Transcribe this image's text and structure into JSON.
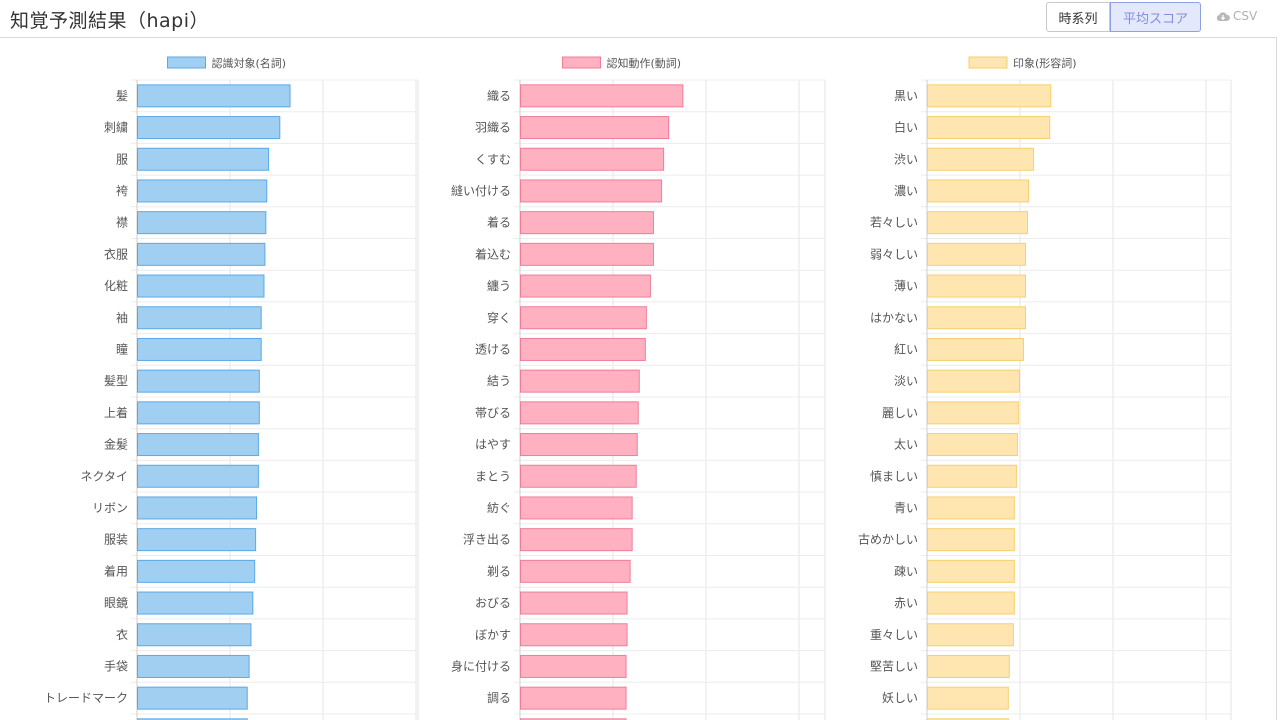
{
  "header": {
    "title": "知覚予測結果（hapi）",
    "buttons": [
      {
        "label": "時系列",
        "active": false
      },
      {
        "label": "平均スコア",
        "active": true
      }
    ],
    "csv_label": "CSV"
  },
  "chart_data": [
    {
      "type": "bar",
      "orientation": "horizontal",
      "series_name": "認識対象(名詞)",
      "fill": "#a0cff1",
      "stroke": "#5aa9e6",
      "categories": [
        "髪",
        "刺繍",
        "服",
        "袴",
        "襟",
        "衣服",
        "化粧",
        "袖",
        "瞳",
        "髪型",
        "上着",
        "金髪",
        "ネクタイ",
        "リボン",
        "服装",
        "着用",
        "眼鏡",
        "衣",
        "手袋",
        "トレードマーク"
      ],
      "values": [
        0.164,
        0.153,
        0.141,
        0.139,
        0.138,
        0.137,
        0.136,
        0.133,
        0.133,
        0.131,
        0.131,
        0.13,
        0.13,
        0.128,
        0.127,
        0.126,
        0.124,
        0.122,
        0.12,
        0.118
      ]
    },
    {
      "type": "bar",
      "orientation": "horizontal",
      "series_name": "認知動作(動詞)",
      "fill": "#ffb1c2",
      "stroke": "#ef7d97",
      "categories": [
        "織る",
        "羽織る",
        "くすむ",
        "縫い付ける",
        "着る",
        "着込む",
        "纏う",
        "穿く",
        "透ける",
        "結う",
        "帯びる",
        "はやす",
        "まとう",
        "紡ぐ",
        "浮き出る",
        "剃る",
        "おびる",
        "ぼかす",
        "身に付ける",
        "調る"
      ],
      "values": [
        0.16,
        0.146,
        0.141,
        0.139,
        0.131,
        0.131,
        0.128,
        0.124,
        0.123,
        0.117,
        0.116,
        0.115,
        0.114,
        0.11,
        0.11,
        0.108,
        0.105,
        0.105,
        0.104,
        0.104
      ]
    },
    {
      "type": "bar",
      "orientation": "horizontal",
      "series_name": "印象(形容詞)",
      "fill": "#ffe6b0",
      "stroke": "#f7cf6e",
      "categories": [
        "黒い",
        "白い",
        "渋い",
        "濃い",
        "若々しい",
        "弱々しい",
        "薄い",
        "はかない",
        "紅い",
        "淡い",
        "麗しい",
        "太い",
        "慎ましい",
        "青い",
        "古めかしい",
        "疎い",
        "赤い",
        "重々しい",
        "堅苦しい",
        "妖しい"
      ],
      "values": [
        0.122,
        0.121,
        0.105,
        0.1,
        0.099,
        0.097,
        0.097,
        0.097,
        0.095,
        0.091,
        0.09,
        0.089,
        0.088,
        0.086,
        0.086,
        0.086,
        0.086,
        0.085,
        0.081,
        0.08
      ]
    }
  ]
}
